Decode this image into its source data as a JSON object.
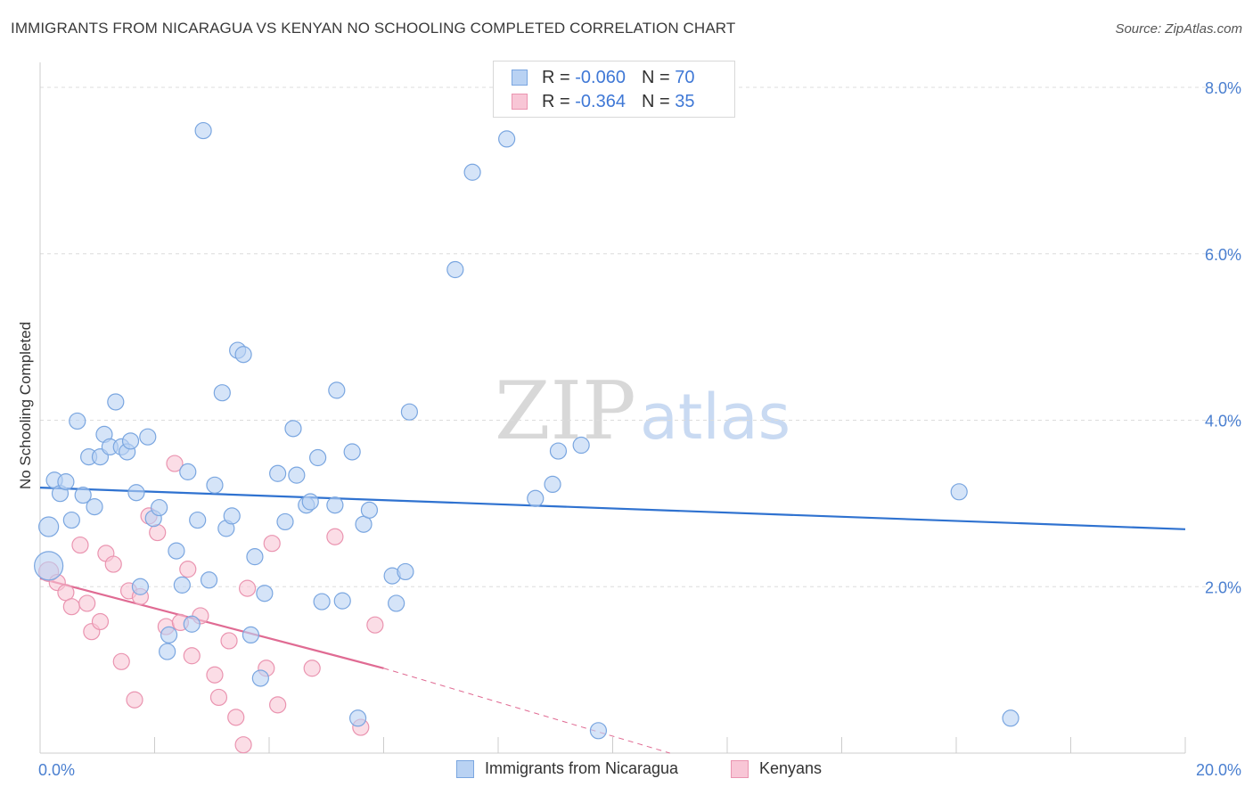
{
  "header": {
    "title": "IMMIGRANTS FROM NICARAGUA VS KENYAN NO SCHOOLING COMPLETED CORRELATION CHART",
    "source": "Source: ZipAtlas.com"
  },
  "watermark": {
    "zip": "ZIP",
    "atlas": "atlas"
  },
  "legend": {
    "rows": [
      {
        "r_label": "R =",
        "r_value": "-0.060",
        "n_label": "N =",
        "n_value": "70"
      },
      {
        "r_label": "R =",
        "r_value": "-0.364",
        "n_label": "N =",
        "n_value": "35"
      }
    ]
  },
  "bottom_legend": {
    "items": [
      "Immigrants from Nicaragua",
      "Kenyans"
    ]
  },
  "colors": {
    "blue_fill": "#b9d2f3",
    "blue_stroke": "#7aa6e0",
    "blue_line": "#2f72d0",
    "pink_fill": "#f8c6d6",
    "pink_stroke": "#ea94b0",
    "pink_line": "#e06b93",
    "tick_color": "#4a7fd0",
    "grid": "#dcdcdc"
  },
  "chart_data": {
    "type": "scatter",
    "title": "IMMIGRANTS FROM NICARAGUA VS KENYAN NO SCHOOLING COMPLETED CORRELATION CHART",
    "xlabel": "",
    "ylabel": "No Schooling Completed",
    "xlim": [
      0,
      20
    ],
    "ylim": [
      0,
      8.3
    ],
    "x_tick_labels": [
      "0.0%",
      "20.0%"
    ],
    "y_ticks": [
      2,
      4,
      6,
      8
    ],
    "y_tick_labels": [
      "2.0%",
      "4.0%",
      "6.0%",
      "8.0%"
    ],
    "grid": true,
    "legend_position": "top-center",
    "series": [
      {
        "name": "Immigrants from Nicaragua",
        "points": [
          [
            0.15,
            2.25,
            16
          ],
          [
            0.15,
            2.72,
            11
          ],
          [
            0.25,
            3.28,
            9
          ],
          [
            0.35,
            3.12,
            9
          ],
          [
            0.45,
            3.26,
            9
          ],
          [
            0.55,
            2.8,
            9
          ],
          [
            0.65,
            3.99,
            9
          ],
          [
            0.75,
            3.1,
            9
          ],
          [
            0.85,
            3.56,
            9
          ],
          [
            0.95,
            2.96,
            9
          ],
          [
            1.05,
            3.56,
            9
          ],
          [
            1.12,
            3.83,
            9
          ],
          [
            1.22,
            3.68,
            9
          ],
          [
            1.32,
            4.22,
            9
          ],
          [
            1.42,
            3.68,
            9
          ],
          [
            1.52,
            3.62,
            9
          ],
          [
            1.58,
            3.75,
            9
          ],
          [
            1.68,
            3.13,
            9
          ],
          [
            1.75,
            2.0,
            9
          ],
          [
            1.88,
            3.8,
            9
          ],
          [
            1.98,
            2.82,
            9
          ],
          [
            2.08,
            2.95,
            9
          ],
          [
            2.22,
            1.22,
            9
          ],
          [
            2.25,
            1.42,
            9
          ],
          [
            2.38,
            2.43,
            9
          ],
          [
            2.48,
            2.02,
            9
          ],
          [
            2.58,
            3.38,
            9
          ],
          [
            2.65,
            1.55,
            9
          ],
          [
            2.75,
            2.8,
            9
          ],
          [
            2.85,
            7.48,
            9
          ],
          [
            2.95,
            2.08,
            9
          ],
          [
            3.05,
            3.22,
            9
          ],
          [
            3.18,
            4.33,
            9
          ],
          [
            3.25,
            2.7,
            9
          ],
          [
            3.35,
            2.85,
            9
          ],
          [
            3.45,
            4.84,
            9
          ],
          [
            3.55,
            4.79,
            9
          ],
          [
            3.68,
            1.42,
            9
          ],
          [
            3.75,
            2.36,
            9
          ],
          [
            3.85,
            0.9,
            9
          ],
          [
            3.92,
            1.92,
            9
          ],
          [
            4.15,
            3.36,
            9
          ],
          [
            4.28,
            2.78,
            9
          ],
          [
            4.42,
            3.9,
            9
          ],
          [
            4.48,
            3.34,
            9
          ],
          [
            4.65,
            2.98,
            9
          ],
          [
            4.72,
            3.02,
            9
          ],
          [
            4.85,
            3.55,
            9
          ],
          [
            4.92,
            1.82,
            9
          ],
          [
            5.15,
            2.98,
            9
          ],
          [
            5.18,
            4.36,
            9
          ],
          [
            5.28,
            1.83,
            9
          ],
          [
            5.45,
            3.62,
            9
          ],
          [
            5.55,
            0.42,
            9
          ],
          [
            5.65,
            2.75,
            9
          ],
          [
            5.75,
            2.92,
            9
          ],
          [
            6.15,
            2.13,
            9
          ],
          [
            6.22,
            1.8,
            9
          ],
          [
            6.38,
            2.18,
            9
          ],
          [
            6.45,
            4.1,
            9
          ],
          [
            7.25,
            5.81,
            9
          ],
          [
            7.55,
            6.98,
            9
          ],
          [
            8.15,
            7.38,
            9
          ],
          [
            8.65,
            3.06,
            9
          ],
          [
            8.95,
            3.23,
            9
          ],
          [
            9.05,
            3.63,
            9
          ],
          [
            9.45,
            3.7,
            9
          ],
          [
            9.75,
            0.27,
            9
          ],
          [
            16.05,
            3.14,
            9
          ],
          [
            16.95,
            0.42,
            9
          ]
        ],
        "trend": {
          "x0": 0.0,
          "y0": 3.19,
          "x1": 20.0,
          "y1": 2.69
        }
      },
      {
        "name": "Kenyans",
        "points": [
          [
            0.15,
            2.18,
            11
          ],
          [
            0.3,
            2.05,
            9
          ],
          [
            0.45,
            1.93,
            9
          ],
          [
            0.55,
            1.76,
            9
          ],
          [
            0.7,
            2.5,
            9
          ],
          [
            0.82,
            1.8,
            9
          ],
          [
            0.9,
            1.46,
            9
          ],
          [
            1.05,
            1.58,
            9
          ],
          [
            1.15,
            2.4,
            9
          ],
          [
            1.28,
            2.27,
            9
          ],
          [
            1.42,
            1.1,
            9
          ],
          [
            1.55,
            1.95,
            9
          ],
          [
            1.65,
            0.64,
            9
          ],
          [
            1.75,
            1.88,
            9
          ],
          [
            1.9,
            2.85,
            9
          ],
          [
            2.05,
            2.65,
            9
          ],
          [
            2.2,
            1.52,
            9
          ],
          [
            2.35,
            3.48,
            9
          ],
          [
            2.45,
            1.57,
            9
          ],
          [
            2.58,
            2.21,
            9
          ],
          [
            2.65,
            1.17,
            9
          ],
          [
            2.8,
            1.65,
            9
          ],
          [
            3.05,
            0.94,
            9
          ],
          [
            3.12,
            0.67,
            9
          ],
          [
            3.3,
            1.35,
            9
          ],
          [
            3.42,
            0.43,
            9
          ],
          [
            3.55,
            0.1,
            9
          ],
          [
            3.62,
            1.98,
            9
          ],
          [
            3.95,
            1.02,
            9
          ],
          [
            4.05,
            2.52,
            9
          ],
          [
            4.15,
            0.58,
            9
          ],
          [
            4.75,
            1.02,
            9
          ],
          [
            5.15,
            2.6,
            9
          ],
          [
            5.6,
            0.31,
            9
          ],
          [
            5.85,
            1.54,
            9
          ]
        ],
        "trend": {
          "x0": 0.0,
          "y0": 2.1,
          "x1": 6.0,
          "y1": 1.02
        },
        "trend_dashed": {
          "x0": 6.0,
          "y0": 1.02,
          "x1": 11.0,
          "y1": 0.0
        }
      }
    ]
  }
}
